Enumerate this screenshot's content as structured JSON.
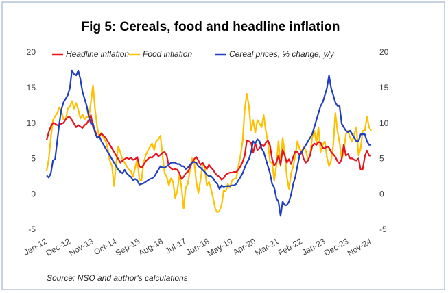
{
  "chart_data": {
    "type": "line",
    "title": "Fig 5: Cereals, food and headline inflation",
    "source": "Source: NSO and author's calculations",
    "categories": [
      "Jan-12",
      null,
      null,
      null,
      null,
      null,
      null,
      null,
      null,
      null,
      null,
      "Dec-12",
      null,
      null,
      null,
      null,
      null,
      null,
      null,
      null,
      null,
      null,
      "Nov-13",
      null,
      null,
      null,
      null,
      null,
      null,
      null,
      null,
      null,
      null,
      "Oct-14",
      null,
      null,
      null,
      null,
      null,
      null,
      null,
      null,
      null,
      null,
      "Sep-15",
      null,
      null,
      null,
      null,
      null,
      null,
      null,
      null,
      null,
      null,
      "Aug-16",
      null,
      null,
      null,
      null,
      null,
      null,
      null,
      null,
      null,
      null,
      "Jul-17",
      null,
      null,
      null,
      null,
      null,
      null,
      null,
      null,
      null,
      null,
      "Jun-18",
      null,
      null,
      null,
      null,
      null,
      null,
      null,
      null,
      null,
      null,
      "May-19",
      null,
      null,
      null,
      null,
      null,
      null,
      null,
      null,
      null,
      null,
      "Apr-20",
      null,
      null,
      null,
      null,
      null,
      null,
      null,
      null,
      null,
      null,
      "Mar-21",
      null,
      null,
      null,
      null,
      null,
      null,
      null,
      null,
      null,
      null,
      "Feb-22",
      null,
      null,
      null,
      null,
      null,
      null,
      null,
      null,
      null,
      null,
      "Jan-23",
      null,
      null,
      null,
      null,
      null,
      null,
      null,
      null,
      null,
      null,
      "Dec-23",
      null,
      null,
      null,
      null,
      null,
      null,
      null,
      null,
      null,
      null,
      "Nov-24"
    ],
    "series": [
      {
        "name": "Headline inflation",
        "color": "#e8141c",
        "values": [
          7.7,
          8.8,
          9.6,
          10.1,
          10.0,
          9.8,
          9.8,
          10.0,
          10.1,
          10.6,
          10.9,
          10.9,
          10.5,
          10.0,
          9.5,
          9.8,
          9.6,
          9.4,
          9.8,
          10.0,
          10.5,
          11.2,
          9.5,
          9.0,
          8.0,
          8.3,
          8.6,
          8.3,
          8.0,
          7.5,
          7.0,
          6.5,
          6.0,
          5.5,
          5.0,
          4.5,
          4.8,
          5.0,
          5.2,
          5.0,
          5.2,
          4.9,
          5.0,
          5.3,
          4.0,
          3.8,
          4.2,
          4.7,
          5.0,
          5.3,
          5.2,
          5.5,
          5.8,
          5.4,
          5.6,
          5.9,
          6.0,
          5.5,
          4.0,
          3.7,
          3.5,
          3.6,
          3.5,
          3.0,
          2.2,
          2.5,
          3.0,
          3.2,
          3.8,
          4.5,
          5.0,
          5.3,
          4.8,
          4.2,
          4.5,
          4.0,
          3.6,
          4.2,
          3.8,
          3.5,
          3.0,
          2.7,
          2.5,
          2.1,
          2.3,
          2.8,
          3.0,
          3.1,
          3.1,
          3.2,
          3.2,
          3.5,
          4.0,
          4.6,
          5.5,
          7.6,
          7.5,
          7.3,
          5.9,
          7.2,
          6.3,
          6.5,
          7.0,
          6.8,
          7.3,
          7.6,
          6.9,
          5.0,
          4.1,
          4.5,
          5.5,
          4.2,
          6.3,
          5.5,
          4.5,
          5.0,
          4.3,
          5.3,
          6.1,
          6.0,
          5.6,
          6.1,
          5.0,
          4.5,
          4.8,
          5.5,
          6.8,
          7.2,
          7.0,
          7.4,
          7.3,
          6.6,
          6.5,
          6.8,
          6.6,
          6.0,
          5.7,
          5.3,
          4.7,
          4.4,
          5.0,
          7.0,
          5.5,
          5.7,
          5.1,
          5.1,
          4.9,
          4.8,
          5.1,
          3.5,
          3.6,
          5.4,
          6.2,
          5.5,
          5.5
        ]
      },
      {
        "name": "Food inflation",
        "color": "#ffc000",
        "values": [
          3.3,
          5.0,
          8.0,
          10.5,
          11.0,
          11.5,
          12.3,
          11.8,
          10.6,
          10.5,
          12.1,
          12.4,
          13.2,
          12.1,
          12.9,
          12.0,
          10.7,
          11.3,
          10.6,
          11.0,
          10.8,
          13.0,
          15.4,
          12.0,
          9.5,
          8.0,
          8.7,
          8.0,
          7.5,
          6.5,
          4.8,
          4.0,
          1.2,
          4.5,
          6.8,
          5.9,
          5.0,
          4.5,
          4.0,
          3.5,
          3.3,
          2.5,
          3.8,
          5.0,
          2.1,
          2.0,
          4.5,
          5.5,
          6.2,
          6.7,
          7.2,
          6.3,
          7.5,
          7.8,
          8.3,
          5.5,
          3.0,
          2.5,
          1.3,
          2.3,
          1.8,
          -0.5,
          0.5,
          2.8,
          1.0,
          -2.0,
          1.0,
          1.5,
          3.4,
          5.1,
          4.8,
          1.8,
          0.2,
          2.0,
          4.3,
          3.9,
          1.3,
          1.8,
          0.8,
          -0.5,
          -2.0,
          -2.5,
          -2.3,
          -1.5,
          0.5,
          0.5,
          1.5,
          1.0,
          2.0,
          2.2,
          2.3,
          4.0,
          5.5,
          7.5,
          12.0,
          14.2,
          12.5,
          9.0,
          10.5,
          8.7,
          10.5,
          10.0,
          9.5,
          11.2,
          9.0,
          7.4,
          4.6,
          4.5,
          2.0,
          4.0,
          7.5,
          4.0,
          8.0,
          5.9,
          2.5,
          0.8,
          3.0,
          4.0,
          5.5,
          7.5,
          6.5,
          6.0,
          6.8,
          6.2,
          4.9,
          5.5,
          8.0,
          9.0,
          7.3,
          9.5,
          6.0,
          7.0,
          7.5,
          5.3,
          4.0,
          4.8,
          7.0,
          11.5,
          9.0,
          7.3,
          5.0,
          6.0,
          8.5,
          9.0,
          8.0,
          7.5,
          8.5,
          9.5,
          5.5,
          6.5,
          9.0,
          9.0,
          11.0,
          9.5,
          9.0
        ]
      },
      {
        "name": "Cereal prices, % change, y/y",
        "color": "#1f3fbf",
        "values": [
          2.7,
          2.4,
          3.0,
          4.8,
          5.0,
          7.5,
          10.0,
          12.0,
          13.0,
          13.5,
          14.0,
          15.0,
          17.5,
          17.0,
          16.8,
          17.5,
          16.3,
          14.5,
          13.5,
          12.5,
          11.0,
          10.0,
          10.0,
          8.7,
          8.0,
          8.2,
          7.5,
          7.0,
          6.5,
          6.0,
          5.5,
          5.0,
          4.5,
          4.0,
          3.5,
          3.2,
          3.0,
          3.5,
          3.0,
          2.7,
          2.5,
          2.0,
          2.2,
          2.0,
          1.4,
          1.5,
          1.6,
          1.8,
          2.0,
          2.2,
          2.3,
          2.5,
          3.0,
          3.5,
          4.0,
          3.8,
          3.8,
          4.0,
          4.2,
          4.5,
          4.5,
          4.5,
          4.3,
          4.3,
          4.0,
          4.0,
          3.6,
          3.8,
          4.2,
          4.5,
          4.6,
          4.5,
          4.0,
          3.8,
          3.5,
          3.2,
          2.8,
          2.6,
          2.6,
          2.3,
          1.8,
          1.5,
          0.8,
          1.3,
          1.1,
          1.2,
          1.2,
          1.2,
          1.3,
          1.3,
          1.5,
          2.0,
          2.5,
          3.0,
          3.8,
          4.5,
          5.0,
          6.0,
          7.5,
          7.2,
          7.8,
          7.5,
          6.5,
          6.0,
          5.0,
          4.0,
          3.0,
          1.5,
          1.0,
          -0.5,
          -1.0,
          -3.0,
          -1.0,
          -1.5,
          -1.5,
          -1.0,
          0.0,
          1.5,
          2.5,
          4.0,
          5.5,
          6.0,
          6.5,
          7.0,
          7.5,
          8.0,
          8.5,
          9.5,
          10.5,
          11.5,
          12.5,
          13.0,
          14.0,
          15.0,
          16.8,
          15.0,
          14.0,
          13.0,
          12.5,
          12.5,
          10.0,
          9.5,
          9.0,
          8.8,
          9.0,
          8.5,
          8.0,
          7.5,
          7.5,
          8.5,
          8.5,
          8.5,
          7.5,
          7.0,
          7.0
        ]
      }
    ],
    "ylim": [
      -5,
      20
    ],
    "yticks": [
      -5,
      0,
      5,
      10,
      15,
      20
    ],
    "y2lim": [
      -5,
      20
    ],
    "y2ticks": [
      -5,
      0,
      5,
      10,
      15,
      20
    ],
    "legend": "top"
  }
}
